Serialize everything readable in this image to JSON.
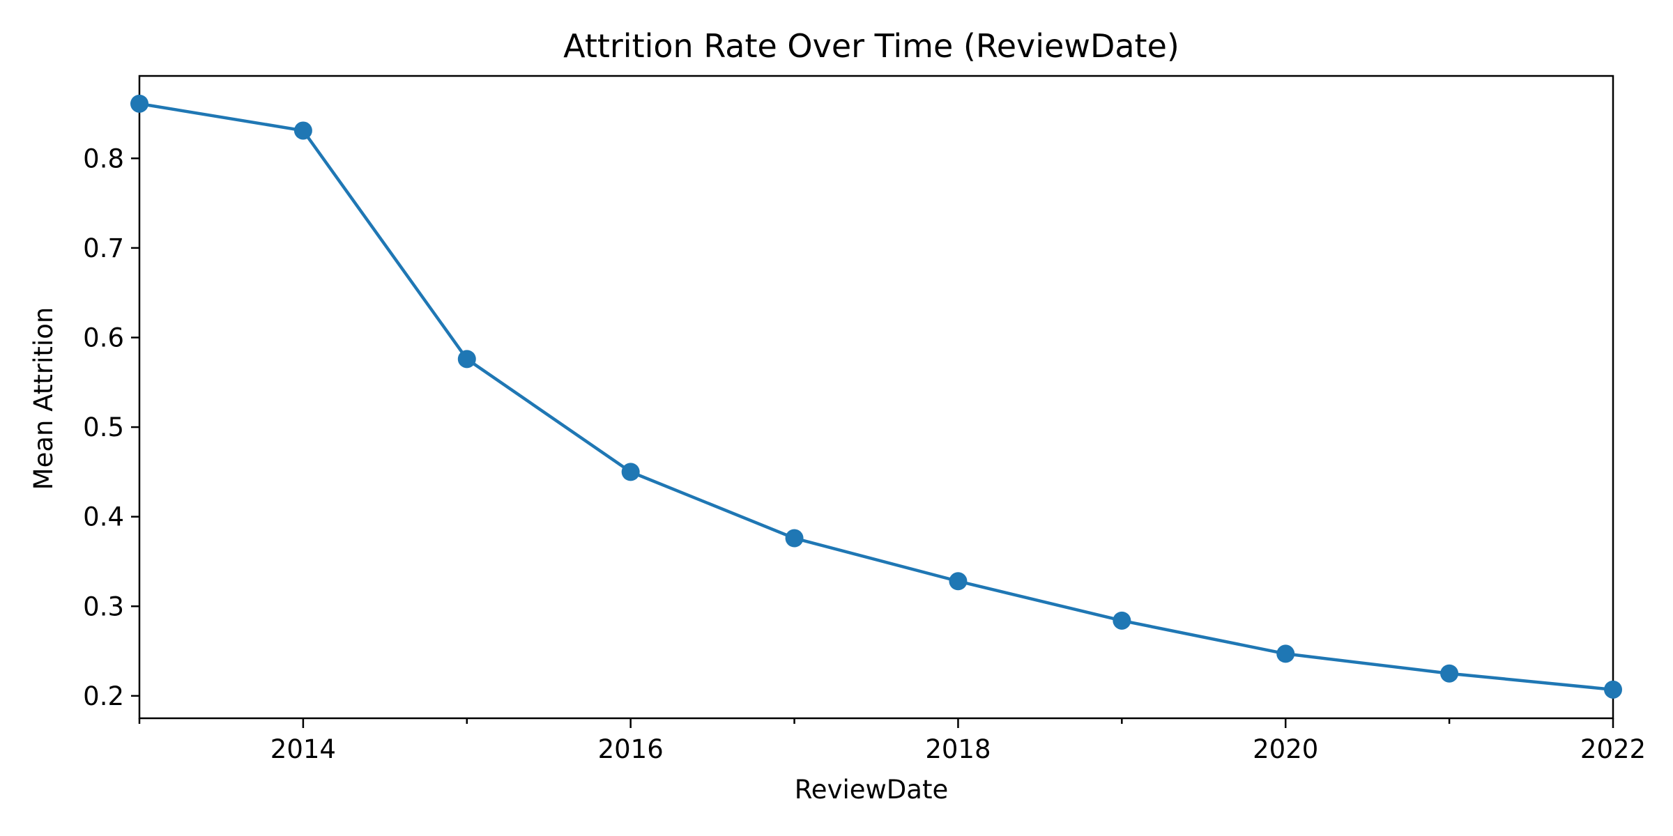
{
  "chart_data": {
    "type": "line",
    "title": "Attrition Rate Over Time (ReviewDate)",
    "xlabel": "ReviewDate",
    "ylabel": "Mean Attrition",
    "x": [
      2013,
      2014,
      2015,
      2016,
      2017,
      2018,
      2019,
      2020,
      2021,
      2022
    ],
    "xlim": [
      2013,
      2022
    ],
    "ylim": [
      0.175,
      0.892
    ],
    "x_major_ticks": [
      2014,
      2016,
      2018,
      2020,
      2022
    ],
    "x_minor_ticks": [
      2013,
      2015,
      2017,
      2019,
      2021
    ],
    "y_ticks": [
      0.2,
      0.3,
      0.4,
      0.5,
      0.6,
      0.7,
      0.8
    ],
    "y_tick_labels": [
      "0.2",
      "0.3",
      "0.4",
      "0.5",
      "0.6",
      "0.7",
      "0.8"
    ],
    "x_tick_labels": [
      "2014",
      "2016",
      "2018",
      "2020",
      "2022"
    ],
    "grid": false,
    "series": [
      {
        "values": [
          0.861,
          0.831,
          0.576,
          0.45,
          0.376,
          0.328,
          0.284,
          0.247,
          0.225,
          0.207
        ],
        "color": "#1f77b4",
        "marker": "circle"
      }
    ]
  }
}
